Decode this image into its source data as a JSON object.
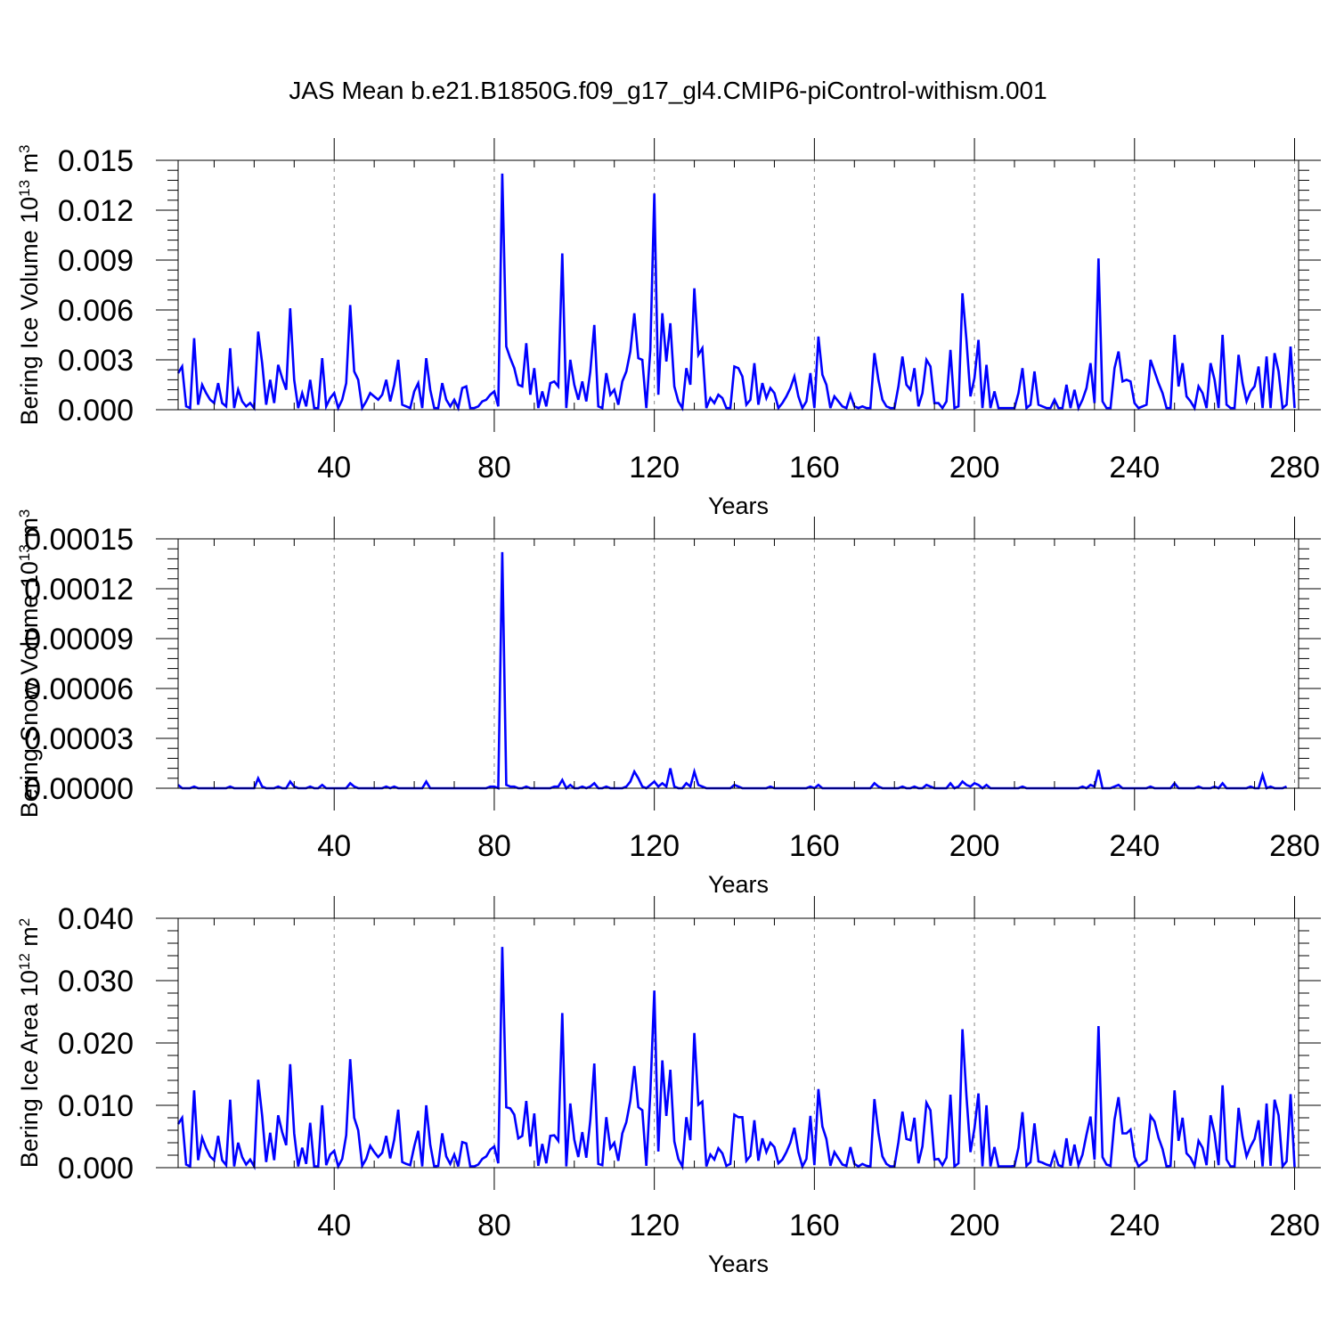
{
  "title": "JAS Mean b.e21.B1850G.f09_g17_gl4.CMIP6-piControl-withism.001",
  "colors": {
    "series": "#0000ff",
    "axis": "#000000",
    "grid": "#888888"
  },
  "chart_data": [
    {
      "type": "line",
      "ylabel": {
        "base": "Bering Ice Volume 10",
        "exp1": "13",
        "unit": " m",
        "exp2": "3"
      },
      "xlabel": "Years",
      "xlim": [
        1,
        281
      ],
      "ylim": [
        0,
        0.015
      ],
      "xticks": [
        40,
        80,
        120,
        160,
        200,
        240,
        280
      ],
      "yticks": [
        "0.000",
        "0.003",
        "0.006",
        "0.009",
        "0.012",
        "0.015"
      ],
      "grid": "vertical dashed at major x ticks",
      "series": [
        {
          "values": [
            0.0022,
            0.0026,
            0.0002,
            0.0001,
            0.0043,
            0.0003,
            0.0015,
            0.001,
            0.0006,
            0.0004,
            0.0016,
            0.0004,
            0.0002,
            0.0037,
            0.0001,
            0.0012,
            0.0005,
            0.0002,
            0.0004,
            0.0001,
            0.0047,
            0.0028,
            0.0003,
            0.0018,
            0.0004,
            0.0027,
            0.0019,
            0.0012,
            0.0061,
            0.0018,
            0.0001,
            0.001,
            0.0002,
            0.0018,
            0.0001,
            0.0001,
            0.0031,
            0.0002,
            0.0007,
            0.001,
            0.0001,
            0.0006,
            0.0016,
            0.0063,
            0.0023,
            0.0018,
            0.0001,
            0.0005,
            0.001,
            0.0008,
            0.0006,
            0.0009,
            0.0018,
            0.0005,
            0.0015,
            0.003,
            0.0003,
            0.0002,
            0.0001,
            0.0011,
            0.0016,
            0.0001,
            0.0031,
            0.0012,
            0.0001,
            0.0001,
            0.0016,
            0.0006,
            0.0002,
            0.0006,
            0.0001,
            0.0013,
            0.0014,
            0.0001,
            0.0001,
            0.0002,
            0.0005,
            0.0006,
            0.0009,
            0.0011,
            0.0002,
            0.0142,
            0.0038,
            0.0031,
            0.0025,
            0.0015,
            0.0014,
            0.004,
            0.0009,
            0.0025,
            0.0001,
            0.0011,
            0.0002,
            0.0016,
            0.0017,
            0.0014,
            0.0094,
            0.0001,
            0.003,
            0.0015,
            0.0006,
            0.0017,
            0.0005,
            0.0023,
            0.0051,
            0.0002,
            0.0001,
            0.0022,
            0.0009,
            0.0012,
            0.0003,
            0.0017,
            0.0023,
            0.0035,
            0.0058,
            0.0031,
            0.003,
            0.0001,
            0.0036,
            0.013,
            0.0009,
            0.0058,
            0.0029,
            0.0052,
            0.0014,
            0.0005,
            0.0001,
            0.0025,
            0.0015,
            0.0073,
            0.0033,
            0.0037,
            0.0001,
            0.0007,
            0.0004,
            0.0009,
            0.0007,
            0.0001,
            0.0001,
            0.0026,
            0.0025,
            0.002,
            0.0003,
            0.0006,
            0.0028,
            0.0003,
            0.0016,
            0.0007,
            0.0013,
            0.001,
            0.0001,
            0.0004,
            0.0008,
            0.0013,
            0.002,
            0.0008,
            0.0001,
            0.0005,
            0.0022,
            0.0001,
            0.0044,
            0.0021,
            0.0015,
            0.0001,
            0.0008,
            0.0005,
            0.0002,
            0.0001,
            0.0009,
            0.0002,
            0.0001,
            0.0002,
            0.0001,
            0.0001,
            0.0034,
            0.0018,
            0.0006,
            0.0002,
            0.0001,
            0.0001,
            0.0014,
            0.0032,
            0.0015,
            0.0012,
            0.0025,
            0.0002,
            0.001,
            0.003,
            0.0026,
            0.0004,
            0.0004,
            0.0001,
            0.0005,
            0.0036,
            0.0001,
            0.0002,
            0.007,
            0.0042,
            0.0008,
            0.0019,
            0.0042,
            0.0001,
            0.0027,
            0.0001,
            0.0011,
            0.0001,
            0.0001,
            0.0001,
            0.0001,
            0.0001,
            0.001,
            0.0025,
            0.0001,
            0.0003,
            0.0023,
            0.0003,
            0.0002,
            0.0001,
            0.0001,
            0.0006,
            0.0001,
            0.0001,
            0.0015,
            0.0001,
            0.0012,
            0.0001,
            0.0006,
            0.0013,
            0.0028,
            0.0004,
            0.0091,
            0.0005,
            0.0001,
            0.0001,
            0.0025,
            0.0035,
            0.0017,
            0.0018,
            0.0017,
            0.0004,
            0.0001,
            0.0002,
            0.0003,
            0.003,
            0.0023,
            0.0016,
            0.001,
            0.0001,
            0.0001,
            0.0045,
            0.0014,
            0.0028,
            0.0008,
            0.0005,
            0.0001,
            0.0014,
            0.001,
            0.0001,
            0.0028,
            0.0018,
            0.0001,
            0.0045,
            0.0003,
            0.0001,
            0.0001,
            0.0033,
            0.0016,
            0.0005,
            0.0011,
            0.0014,
            0.0026,
            0.0001,
            0.0032,
            0.0001,
            0.0034,
            0.0023,
            0.0001,
            0.0003,
            0.0038,
            0.0001
          ]
        }
      ]
    },
    {
      "type": "line",
      "ylabel": {
        "base": "Bering Snow Volume 10",
        "exp1": "13",
        "unit": " m",
        "exp2": "3"
      },
      "xlabel": "Years",
      "xlim": [
        1,
        281
      ],
      "ylim": [
        0,
        0.00015
      ],
      "xticks": [
        40,
        80,
        120,
        160,
        200,
        240,
        280
      ],
      "yticks": [
        "0.00000",
        "0.00003",
        "0.00006",
        "0.00009",
        "0.00012",
        "0.00015"
      ],
      "grid": "vertical dashed at major x ticks",
      "series": [
        {
          "values": [
            2e-06,
            0,
            0,
            0,
            1e-06,
            0,
            0,
            0,
            0,
            0,
            0,
            0,
            0,
            1e-06,
            0,
            0,
            0,
            0,
            0,
            0,
            6e-06,
            1e-06,
            0,
            0,
            0,
            1e-06,
            0,
            0,
            4e-06,
            1e-06,
            0,
            0,
            0,
            1e-06,
            0,
            0,
            2e-06,
            0,
            0,
            0,
            0,
            0,
            0,
            3e-06,
            1e-06,
            0,
            0,
            0,
            0,
            0,
            0,
            0,
            1e-06,
            0,
            1e-06,
            0,
            0,
            0,
            0,
            0,
            0,
            0,
            4e-06,
            0,
            0,
            0,
            0,
            0,
            0,
            0,
            0,
            0,
            0,
            0,
            0,
            0,
            0,
            0,
            1e-06,
            1e-06,
            0,
            0.000142,
            2e-06,
            1e-06,
            1e-06,
            0,
            0,
            1e-06,
            0,
            0,
            0,
            0,
            0,
            0,
            1e-06,
            1e-06,
            5e-06,
            0,
            2e-06,
            0,
            0,
            1e-06,
            0,
            1e-06,
            3e-06,
            0,
            0,
            1e-06,
            0,
            0,
            0,
            0,
            1e-06,
            4e-06,
            1e-05,
            6e-06,
            1e-06,
            0,
            2e-06,
            4e-06,
            1e-06,
            3e-06,
            1e-06,
            1.2e-05,
            1e-06,
            0,
            0,
            3e-06,
            1e-06,
            1e-05,
            2e-06,
            1e-06,
            0,
            0,
            0,
            0,
            0,
            0,
            0,
            2e-06,
            1e-06,
            0,
            0,
            0,
            0,
            0,
            0,
            0,
            1e-06,
            0,
            0,
            0,
            0,
            0,
            0,
            0,
            0,
            0,
            1e-06,
            0,
            2e-06,
            0,
            0,
            0,
            0,
            0,
            0,
            0,
            0,
            0,
            0,
            0,
            0,
            0,
            3e-06,
            1e-06,
            0,
            0,
            0,
            0,
            0,
            1e-06,
            0,
            0,
            1e-06,
            0,
            0,
            2e-06,
            1e-06,
            0,
            0,
            0,
            0,
            3e-06,
            0,
            1e-06,
            4e-06,
            2e-06,
            1e-06,
            3e-06,
            2e-06,
            0,
            2e-06,
            0,
            0,
            0,
            0,
            0,
            0,
            0,
            0,
            1e-06,
            0,
            0,
            0,
            0,
            0,
            0,
            0,
            0,
            0,
            0,
            0,
            0,
            0,
            0,
            1e-06,
            0,
            2e-06,
            1e-06,
            1.1e-05,
            0,
            0,
            0,
            1e-06,
            2e-06,
            0,
            0,
            0,
            0,
            0,
            0,
            0,
            1e-06,
            0,
            0,
            0,
            0,
            0,
            3e-06,
            0,
            0,
            0,
            0,
            0,
            1e-06,
            0,
            0,
            0,
            1e-06,
            0,
            3e-06,
            0,
            0,
            0,
            0,
            0,
            0,
            1e-06,
            0,
            0,
            8e-06,
            0,
            1e-06,
            0,
            0,
            0,
            1e-06
          ]
        }
      ]
    },
    {
      "type": "line",
      "ylabel": {
        "base": "Bering Ice Area 10",
        "exp1": "12",
        "unit": " m",
        "exp2": "2"
      },
      "xlabel": "Years",
      "xlim": [
        1,
        281
      ],
      "ylim": [
        0,
        0.04
      ],
      "xticks": [
        40,
        80,
        120,
        160,
        200,
        240,
        280
      ],
      "yticks": [
        "0.000",
        "0.010",
        "0.020",
        "0.030",
        "0.040"
      ],
      "grid": "vertical dashed at major x ticks",
      "series": [
        {
          "values": [
            0.007,
            0.008,
            0.0005,
            0.0002,
            0.0124,
            0.0012,
            0.0048,
            0.0031,
            0.0018,
            0.0012,
            0.0051,
            0.0012,
            0.0004,
            0.0109,
            0.0002,
            0.004,
            0.0017,
            0.0005,
            0.0013,
            0.0002,
            0.0141,
            0.0083,
            0.0009,
            0.0056,
            0.0012,
            0.0084,
            0.0057,
            0.0036,
            0.0166,
            0.0055,
            0.0002,
            0.0032,
            0.0006,
            0.0072,
            0.0002,
            0.0002,
            0.01,
            0.0004,
            0.0021,
            0.0027,
            0.0002,
            0.0014,
            0.0052,
            0.0174,
            0.008,
            0.006,
            0.0003,
            0.0014,
            0.0035,
            0.0025,
            0.0017,
            0.0024,
            0.0051,
            0.0015,
            0.0045,
            0.0093,
            0.0009,
            0.0006,
            0.0004,
            0.0034,
            0.0059,
            0.0002,
            0.01,
            0.0037,
            0.0002,
            0.0003,
            0.0055,
            0.0018,
            0.0006,
            0.0021,
            0.0002,
            0.0041,
            0.0039,
            0.0002,
            0.0002,
            0.0005,
            0.0014,
            0.0018,
            0.0029,
            0.0034,
            0.0007,
            0.0354,
            0.0097,
            0.0095,
            0.0085,
            0.0047,
            0.0051,
            0.0107,
            0.0034,
            0.0087,
            0.0003,
            0.0038,
            0.0007,
            0.0051,
            0.0052,
            0.0043,
            0.0248,
            0.0002,
            0.0103,
            0.0045,
            0.0017,
            0.0057,
            0.0016,
            0.0076,
            0.0167,
            0.0006,
            0.0004,
            0.0081,
            0.0031,
            0.004,
            0.0011,
            0.0055,
            0.0073,
            0.0107,
            0.0163,
            0.0097,
            0.0092,
            0.0003,
            0.012,
            0.0284,
            0.0026,
            0.0172,
            0.0083,
            0.0157,
            0.0042,
            0.0014,
            0.0002,
            0.0081,
            0.0044,
            0.0216,
            0.0101,
            0.0106,
            0.0002,
            0.0021,
            0.0013,
            0.0031,
            0.0023,
            0.0003,
            0.0006,
            0.0085,
            0.0081,
            0.0081,
            0.0011,
            0.0019,
            0.0076,
            0.0011,
            0.0047,
            0.0025,
            0.004,
            0.0033,
            0.0007,
            0.0013,
            0.0025,
            0.004,
            0.0064,
            0.0025,
            0.0002,
            0.0014,
            0.0083,
            0.0004,
            0.0126,
            0.0066,
            0.0046,
            0.0003,
            0.0025,
            0.0015,
            0.0005,
            0.0003,
            0.0033,
            0.0006,
            0.0002,
            0.0006,
            0.0003,
            0.0002,
            0.011,
            0.0056,
            0.0018,
            0.0006,
            0.0002,
            0.0002,
            0.0041,
            0.009,
            0.0046,
            0.0044,
            0.008,
            0.0007,
            0.0034,
            0.0104,
            0.0092,
            0.0013,
            0.0014,
            0.0004,
            0.0016,
            0.0117,
            0.0002,
            0.0007,
            0.0222,
            0.0115,
            0.0025,
            0.0063,
            0.0119,
            0.0002,
            0.01,
            0.0002,
            0.0033,
            0.0002,
            0.0002,
            0.0002,
            0.0002,
            0.0003,
            0.0032,
            0.0089,
            0.0003,
            0.0009,
            0.0071,
            0.001,
            0.0008,
            0.0005,
            0.0003,
            0.0024,
            0.0004,
            0.0002,
            0.0047,
            0.0003,
            0.0037,
            0.0004,
            0.0021,
            0.0053,
            0.0082,
            0.0013,
            0.0227,
            0.0017,
            0.0005,
            0.0003,
            0.0077,
            0.0113,
            0.0055,
            0.0055,
            0.0061,
            0.0017,
            0.0002,
            0.0007,
            0.0012,
            0.0083,
            0.0074,
            0.0048,
            0.003,
            0.0002,
            0.0003,
            0.0124,
            0.0043,
            0.008,
            0.0023,
            0.0016,
            0.0003,
            0.0043,
            0.0032,
            0.0004,
            0.0084,
            0.0055,
            0.0004,
            0.0132,
            0.0013,
            0.0002,
            0.0002,
            0.0096,
            0.0049,
            0.0018,
            0.0034,
            0.0046,
            0.0076,
            0.0002,
            0.0103,
            0.0003,
            0.0109,
            0.0084,
            0.0002,
            0.001,
            0.0118,
            0.0001
          ]
        }
      ]
    }
  ]
}
